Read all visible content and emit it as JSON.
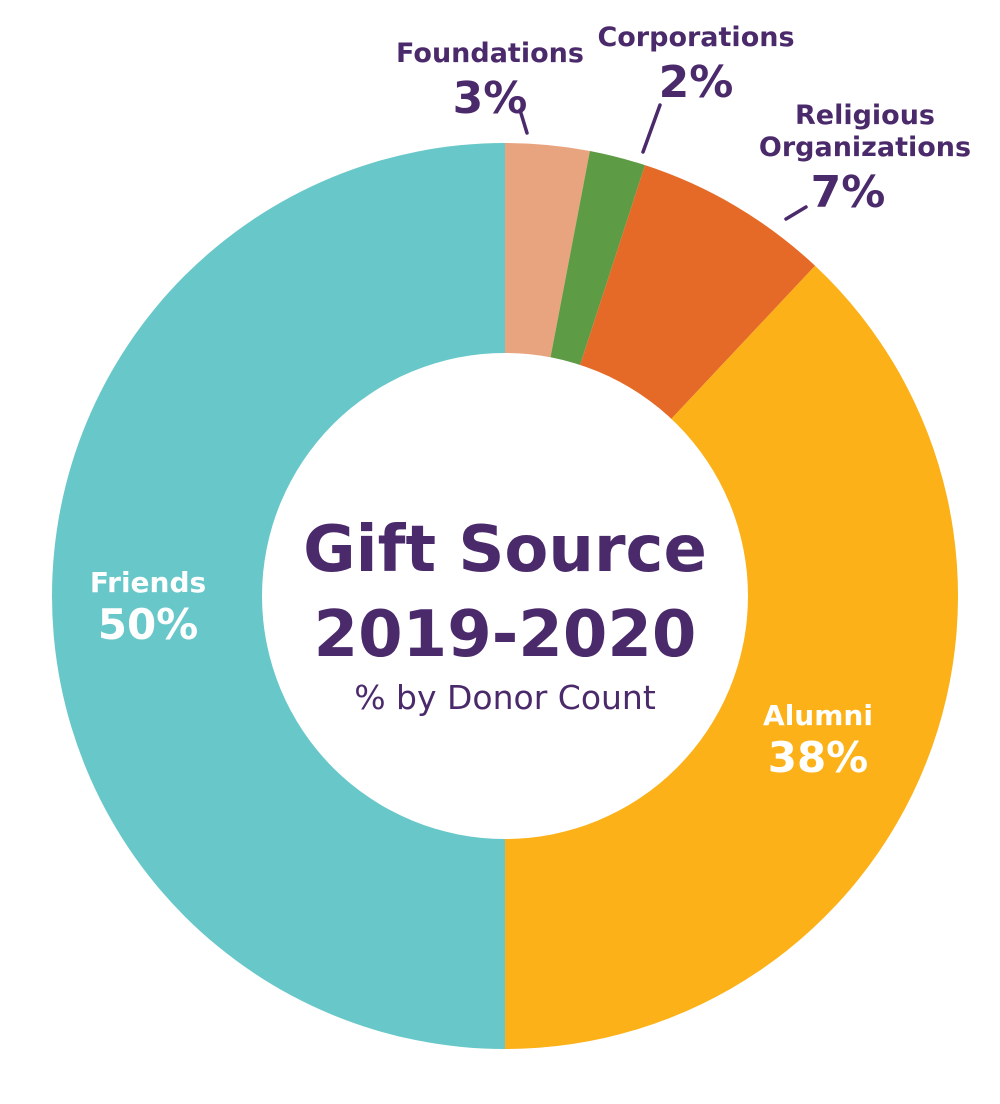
{
  "chart_data": {
    "type": "pie",
    "title_line1": "Gift Source",
    "title_line2": "2019-2020",
    "subtitle": "% by Donor Count",
    "categories": [
      "Foundations",
      "Corporations",
      "Religious Organizations",
      "Alumni",
      "Friends"
    ],
    "values": [
      3,
      2,
      7,
      38,
      50
    ],
    "labels": [
      "Foundations",
      "Corporations",
      "Religious Organizations",
      "Alumni",
      "Friends"
    ],
    "percent_labels": [
      "3%",
      "2%",
      "7%",
      "38%",
      "50%"
    ],
    "colors": [
      "#e8a47e",
      "#5e9b45",
      "#e66a27",
      "#fbb117",
      "#68c7c9"
    ],
    "label_colors": [
      "#4b2a6b",
      "#4b2a6b",
      "#4b2a6b",
      "#ffffff",
      "#ffffff"
    ],
    "start": "top",
    "direction": "clockwise",
    "shape": "donut"
  },
  "theme": {
    "title_color": "#4b2a6b"
  }
}
